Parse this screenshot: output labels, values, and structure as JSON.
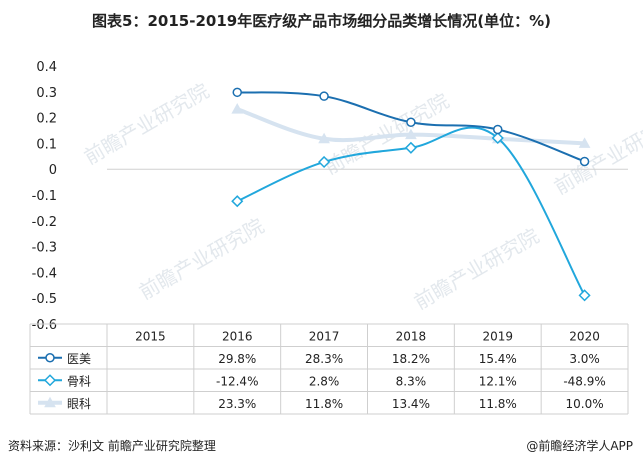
{
  "title": "图表5：2015-2019年医疗级产品市场细分品类增长情况(单位：%)",
  "footer": {
    "source": "资料来源：沙利文 前瞻产业研究院整理",
    "brand": "@前瞻经济学人APP"
  },
  "watermark": {
    "text": "前瞻产业研究院",
    "colors": {
      "text": "#c8d3dc"
    }
  },
  "chart_data": {
    "type": "line",
    "categories": [
      "2015",
      "2016",
      "2017",
      "2018",
      "2019",
      "2020"
    ],
    "ylim": [
      -0.6,
      0.4
    ],
    "yticks": [
      "0.4",
      "0.3",
      "0.2",
      "0.1",
      "0",
      "-0.1",
      "-0.2",
      "-0.3",
      "-0.4",
      "-0.5",
      "-0.6"
    ],
    "grid": false,
    "legend": "data-table-left",
    "series": [
      {
        "name": "医美",
        "color": "#1b6fb0",
        "marker": "circle",
        "values": [
          null,
          0.298,
          0.283,
          0.182,
          0.154,
          0.03
        ],
        "labels": [
          "",
          "29.8%",
          "28.3%",
          "18.2%",
          "15.4%",
          "3.0%"
        ]
      },
      {
        "name": "骨科",
        "color": "#21a7dc",
        "marker": "diamond",
        "values": [
          null,
          -0.124,
          0.028,
          0.083,
          0.121,
          -0.489
        ],
        "labels": [
          "",
          "-12.4%",
          "2.8%",
          "8.3%",
          "12.1%",
          "-48.9%"
        ]
      },
      {
        "name": "眼科",
        "color": "#d6e3f0",
        "marker": "triangle",
        "values": [
          null,
          0.233,
          0.118,
          0.134,
          0.118,
          0.1
        ],
        "labels": [
          "",
          "23.3%",
          "11.8%",
          "13.4%",
          "11.8%",
          "10.0%"
        ]
      }
    ]
  }
}
